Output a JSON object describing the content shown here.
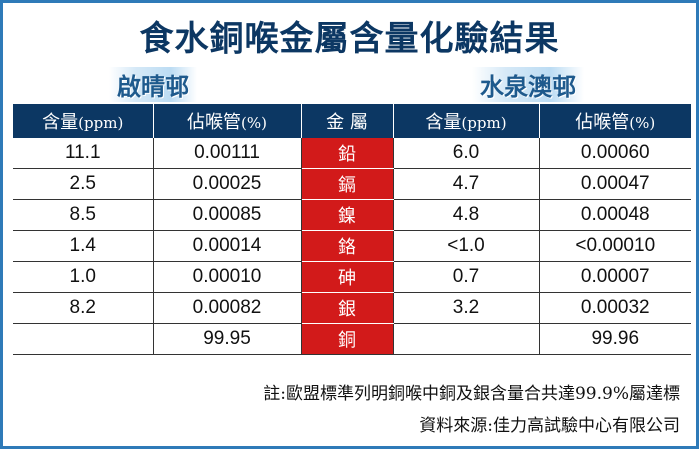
{
  "title": "食水銅喉金屬含量化驗結果",
  "regions": {
    "left": "啟晴邨",
    "right": "水泉澳邨"
  },
  "headers": {
    "content": "含量",
    "content_unit": "(ppm)",
    "share": "佔喉管",
    "share_unit": "(%)",
    "metal": "金 屬"
  },
  "rows": [
    {
      "metal": "鉛",
      "left_ppm": "11.1",
      "left_pct": "0.00111",
      "right_ppm": "6.0",
      "right_pct": "0.00060"
    },
    {
      "metal": "鎘",
      "left_ppm": "2.5",
      "left_pct": "0.00025",
      "right_ppm": "4.7",
      "right_pct": "0.00047"
    },
    {
      "metal": "鎳",
      "left_ppm": "8.5",
      "left_pct": "0.00085",
      "right_ppm": "4.8",
      "right_pct": "0.00048"
    },
    {
      "metal": "鉻",
      "left_ppm": "1.4",
      "left_pct": "0.00014",
      "right_ppm": "<1.0",
      "right_pct": "<0.00010"
    },
    {
      "metal": "砷",
      "left_ppm": "1.0",
      "left_pct": "0.00010",
      "right_ppm": "0.7",
      "right_pct": "0.00007"
    },
    {
      "metal": "銀",
      "left_ppm": "8.2",
      "left_pct": "0.00082",
      "right_ppm": "3.2",
      "right_pct": "0.00032"
    },
    {
      "metal": "銅",
      "left_ppm": "",
      "left_pct": "99.95",
      "right_ppm": "",
      "right_pct": "99.96"
    }
  ],
  "note": "註:歐盟標準列明銅喉中銅及銀含量合共達99.9%屬達標",
  "source": "資料來源:佳力高試驗中心有限公司",
  "colors": {
    "header_bg": "#0c3763",
    "metal_bg": "#d21a1a",
    "border": "#2e7ab8"
  }
}
